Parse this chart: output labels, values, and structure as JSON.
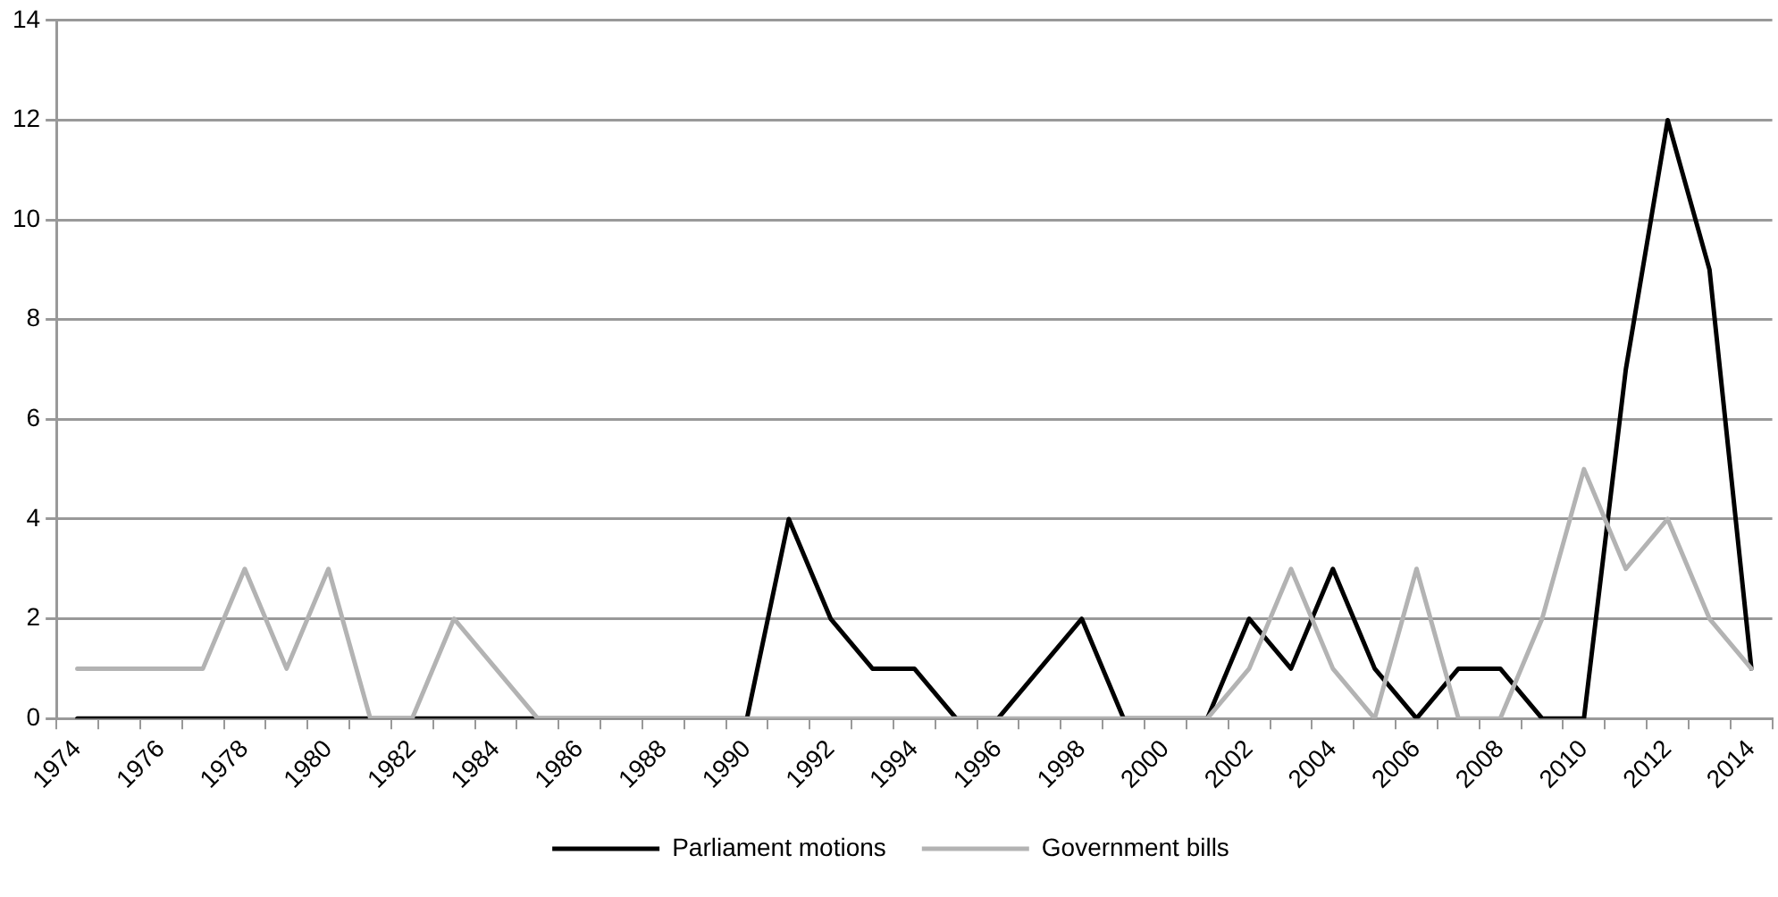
{
  "chart_data": {
    "type": "line",
    "categories": [
      "1974",
      null,
      "1976",
      null,
      "1978",
      null,
      "1980",
      null,
      "1982",
      null,
      "1984",
      null,
      "1986",
      null,
      "1988",
      null,
      "1990",
      null,
      "1992",
      null,
      "1994",
      null,
      "1996",
      null,
      "1998",
      null,
      "2000",
      null,
      "2002",
      null,
      "2004",
      null,
      "2006",
      null,
      "2008",
      null,
      "2010",
      null,
      "2012",
      null,
      "2014"
    ],
    "series": [
      {
        "name": "Parliament motions",
        "color": "#000000",
        "values": [
          0,
          0,
          0,
          0,
          0,
          0,
          0,
          0,
          0,
          0,
          0,
          0,
          0,
          0,
          0,
          0,
          0,
          4,
          2,
          1,
          1,
          0,
          0,
          1,
          2,
          0,
          0,
          0,
          2,
          1,
          3,
          1,
          0,
          1,
          1,
          0,
          0,
          7,
          12,
          9,
          1
        ]
      },
      {
        "name": "Government bills",
        "color": "#b3b3b3",
        "values": [
          1,
          1,
          1,
          1,
          3,
          1,
          3,
          0,
          0,
          2,
          1,
          0,
          0,
          0,
          0,
          0,
          0,
          0,
          0,
          0,
          0,
          0,
          0,
          0,
          0,
          0,
          0,
          0,
          1,
          3,
          1,
          0,
          3,
          0,
          0,
          2,
          5,
          3,
          4,
          2,
          1
        ]
      }
    ],
    "ylim": [
      0,
      14
    ],
    "yticks": [
      0,
      2,
      4,
      6,
      8,
      10,
      12,
      14
    ],
    "grid": "y",
    "legend": "bottom",
    "marker": "none",
    "line_style": "solid"
  }
}
